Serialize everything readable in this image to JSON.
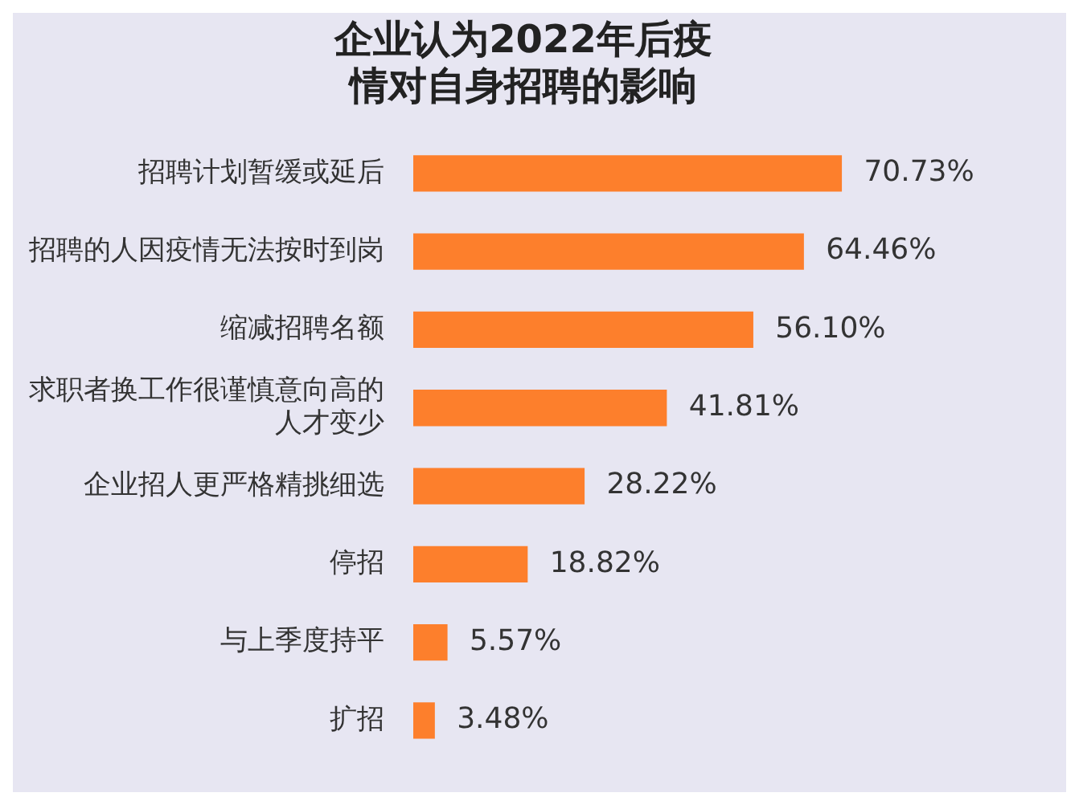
{
  "chart_data": {
    "type": "bar",
    "orientation": "horizontal",
    "title": "企业认为2022年后疫情对自身招聘的影响",
    "categories": [
      "招聘计划暂缓或延后",
      "招聘的人因疫情无法按时到岗",
      "缩减招聘名额",
      "求职者换工作很谨慎意向高的人才变少",
      "企业招人更严格精挑细选",
      "停招",
      "与上季度持平",
      "扩招"
    ],
    "values": [
      70.73,
      64.46,
      56.1,
      41.81,
      28.22,
      18.82,
      5.57,
      3.48
    ],
    "value_labels": [
      "70.73%",
      "64.46%",
      "56.10%",
      "41.81%",
      "28.22%",
      "18.82%",
      "5.57%",
      "3.48%"
    ],
    "color": "#fd7f2c",
    "grid": false,
    "legend": false
  }
}
